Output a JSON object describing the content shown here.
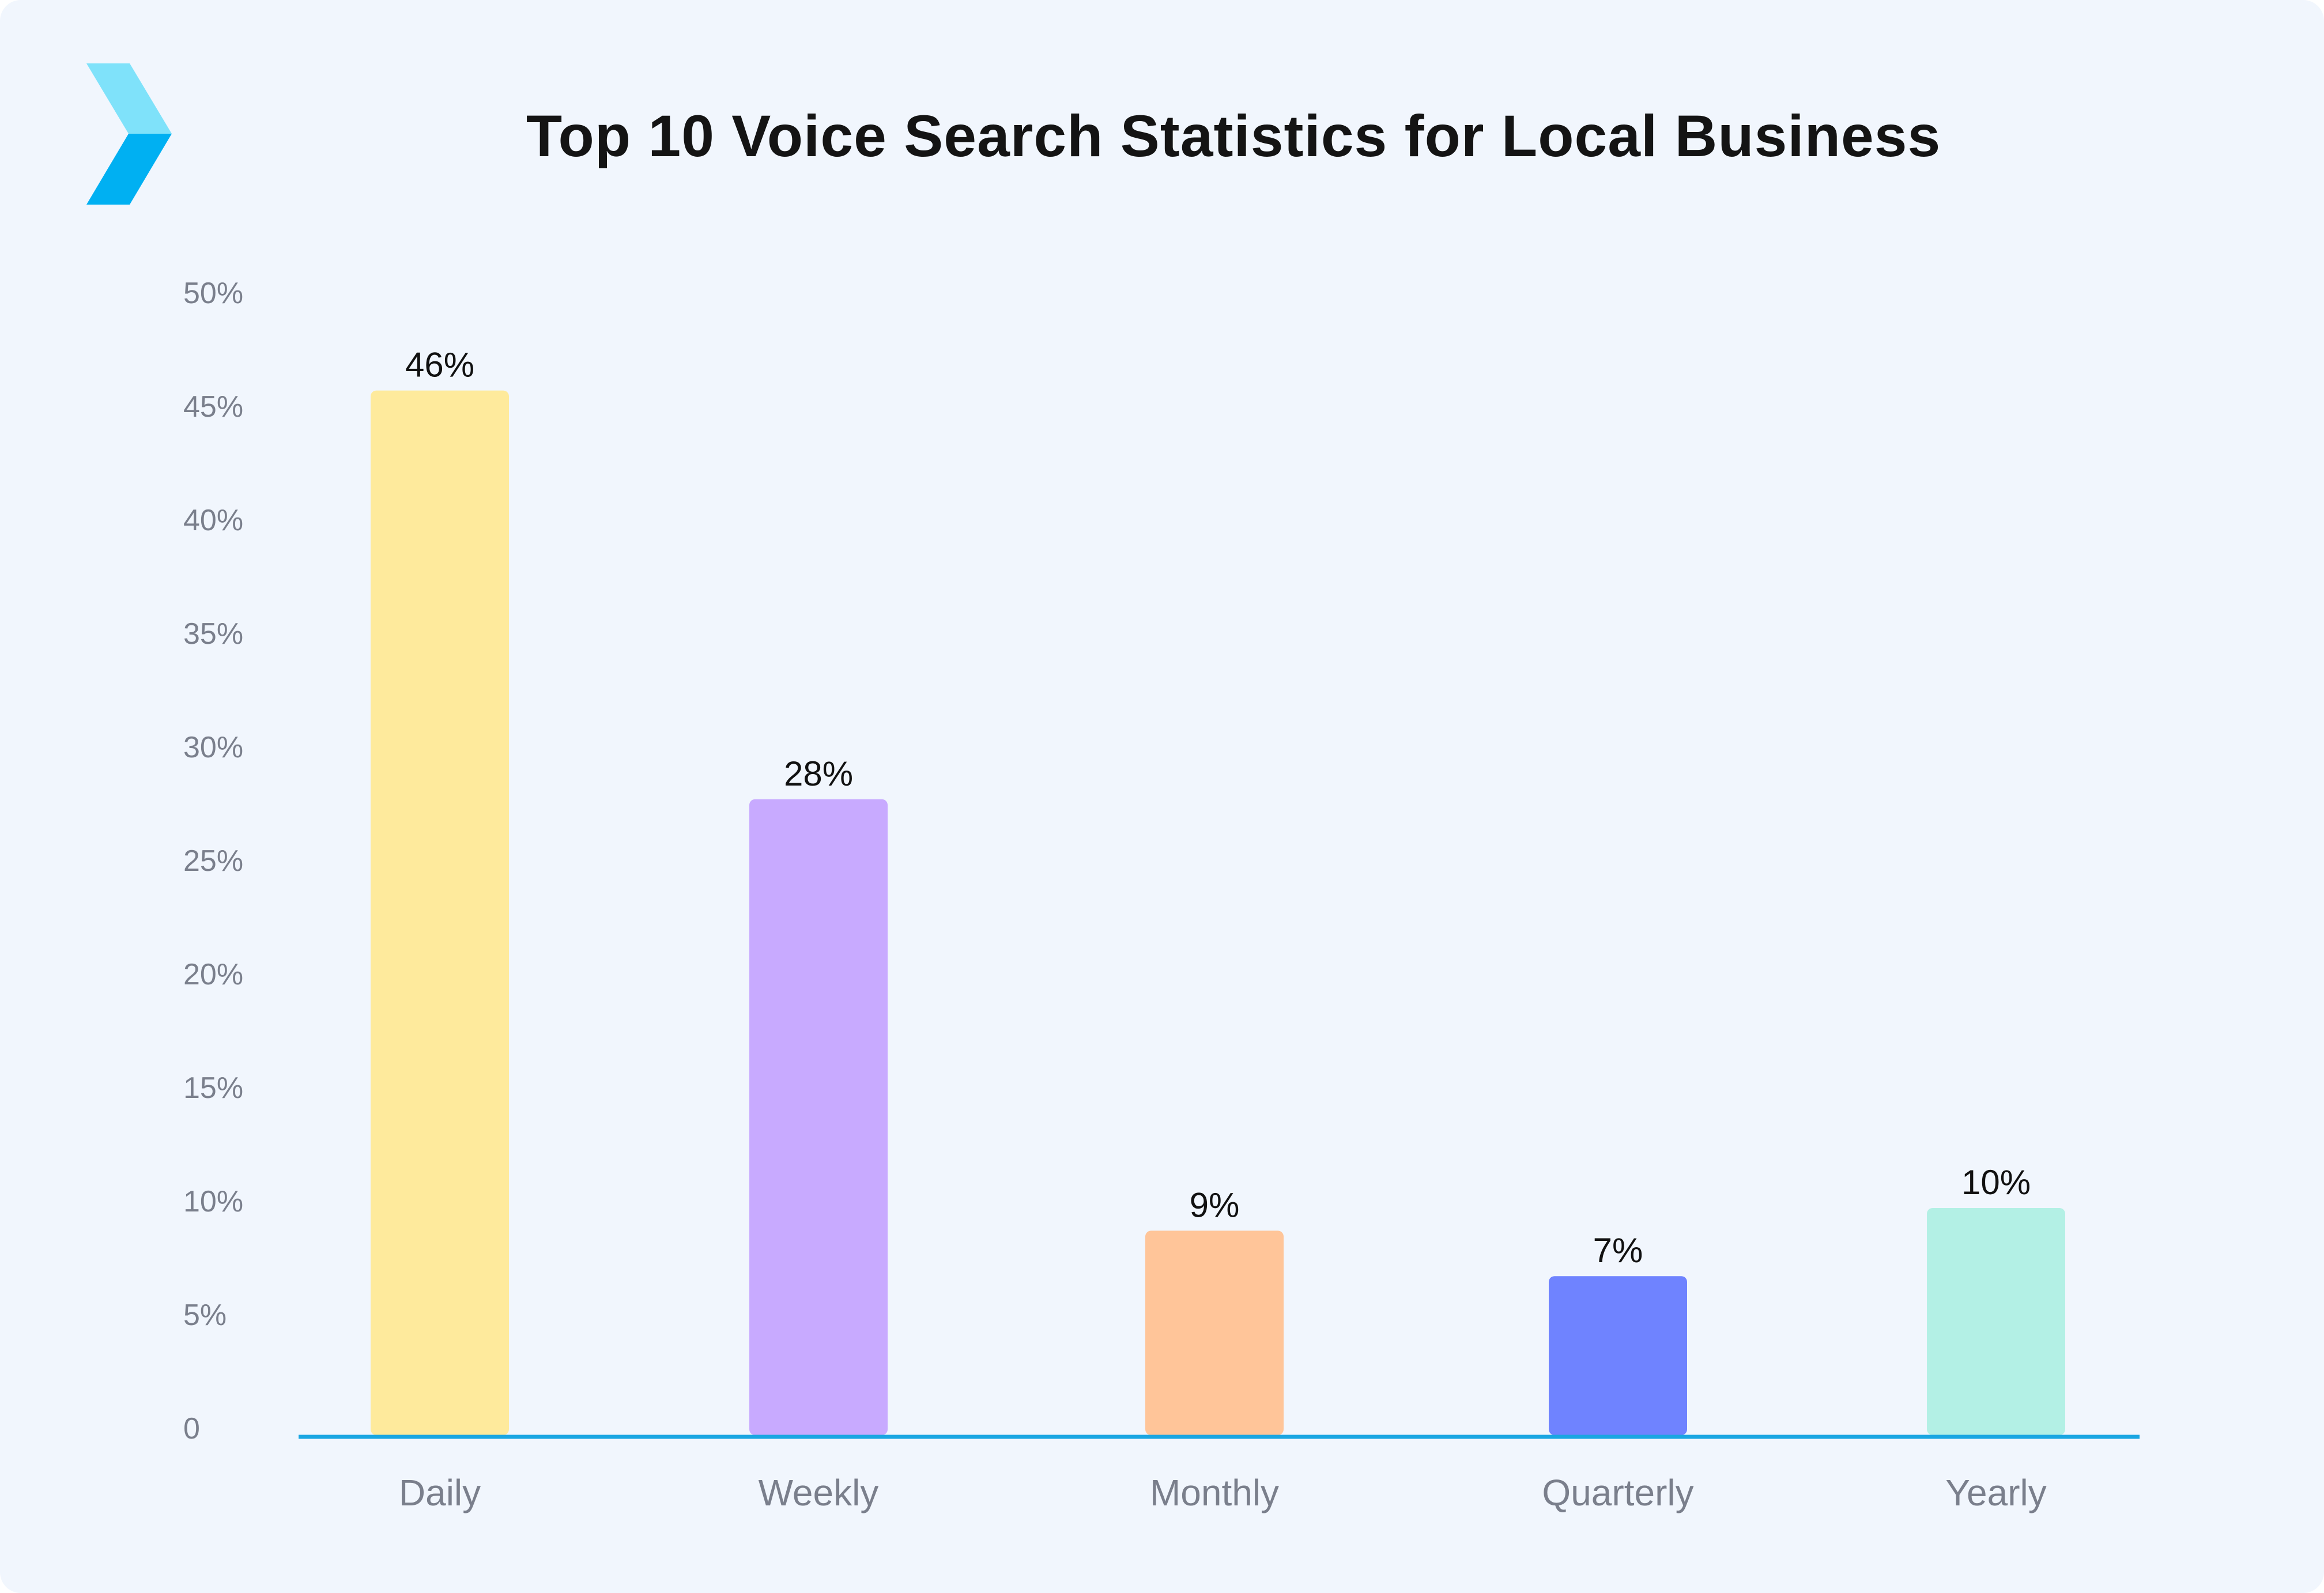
{
  "chart_data": {
    "type": "bar",
    "title": "Top 10 Voice Search Statistics for Local Business",
    "categories": [
      "Daily",
      "Weekly",
      "Monthly",
      "Quarterly",
      "Yearly"
    ],
    "values": [
      46,
      28,
      9,
      7,
      10
    ],
    "value_labels": [
      "46%",
      "28%",
      "9%",
      "7%",
      "10%"
    ],
    "y_ticks": [
      {
        "value": 0,
        "label": "0"
      },
      {
        "value": 5,
        "label": "5%"
      },
      {
        "value": 10,
        "label": "10%"
      },
      {
        "value": 15,
        "label": "15%"
      },
      {
        "value": 20,
        "label": "20%"
      },
      {
        "value": 25,
        "label": "25%"
      },
      {
        "value": 30,
        "label": "30%"
      },
      {
        "value": 35,
        "label": "35%"
      },
      {
        "value": 40,
        "label": "40%"
      },
      {
        "value": 45,
        "label": "45%"
      },
      {
        "value": 50,
        "label": "50%"
      }
    ],
    "ylim": [
      0,
      50
    ],
    "xlabel": "",
    "ylabel": "",
    "grid": false,
    "legend": "none",
    "bar_colors": [
      "#feea9c",
      "#c8aaff",
      "#ffc599",
      "#6f83ff",
      "#b3f0e5"
    ],
    "axis_color": "#1aa6e2"
  },
  "brand": {
    "logo_icon": "chevron-logo-icon",
    "logo_colors": [
      "#7fe2fa",
      "#00b0f2"
    ],
    "background": "#f1f6fd"
  }
}
